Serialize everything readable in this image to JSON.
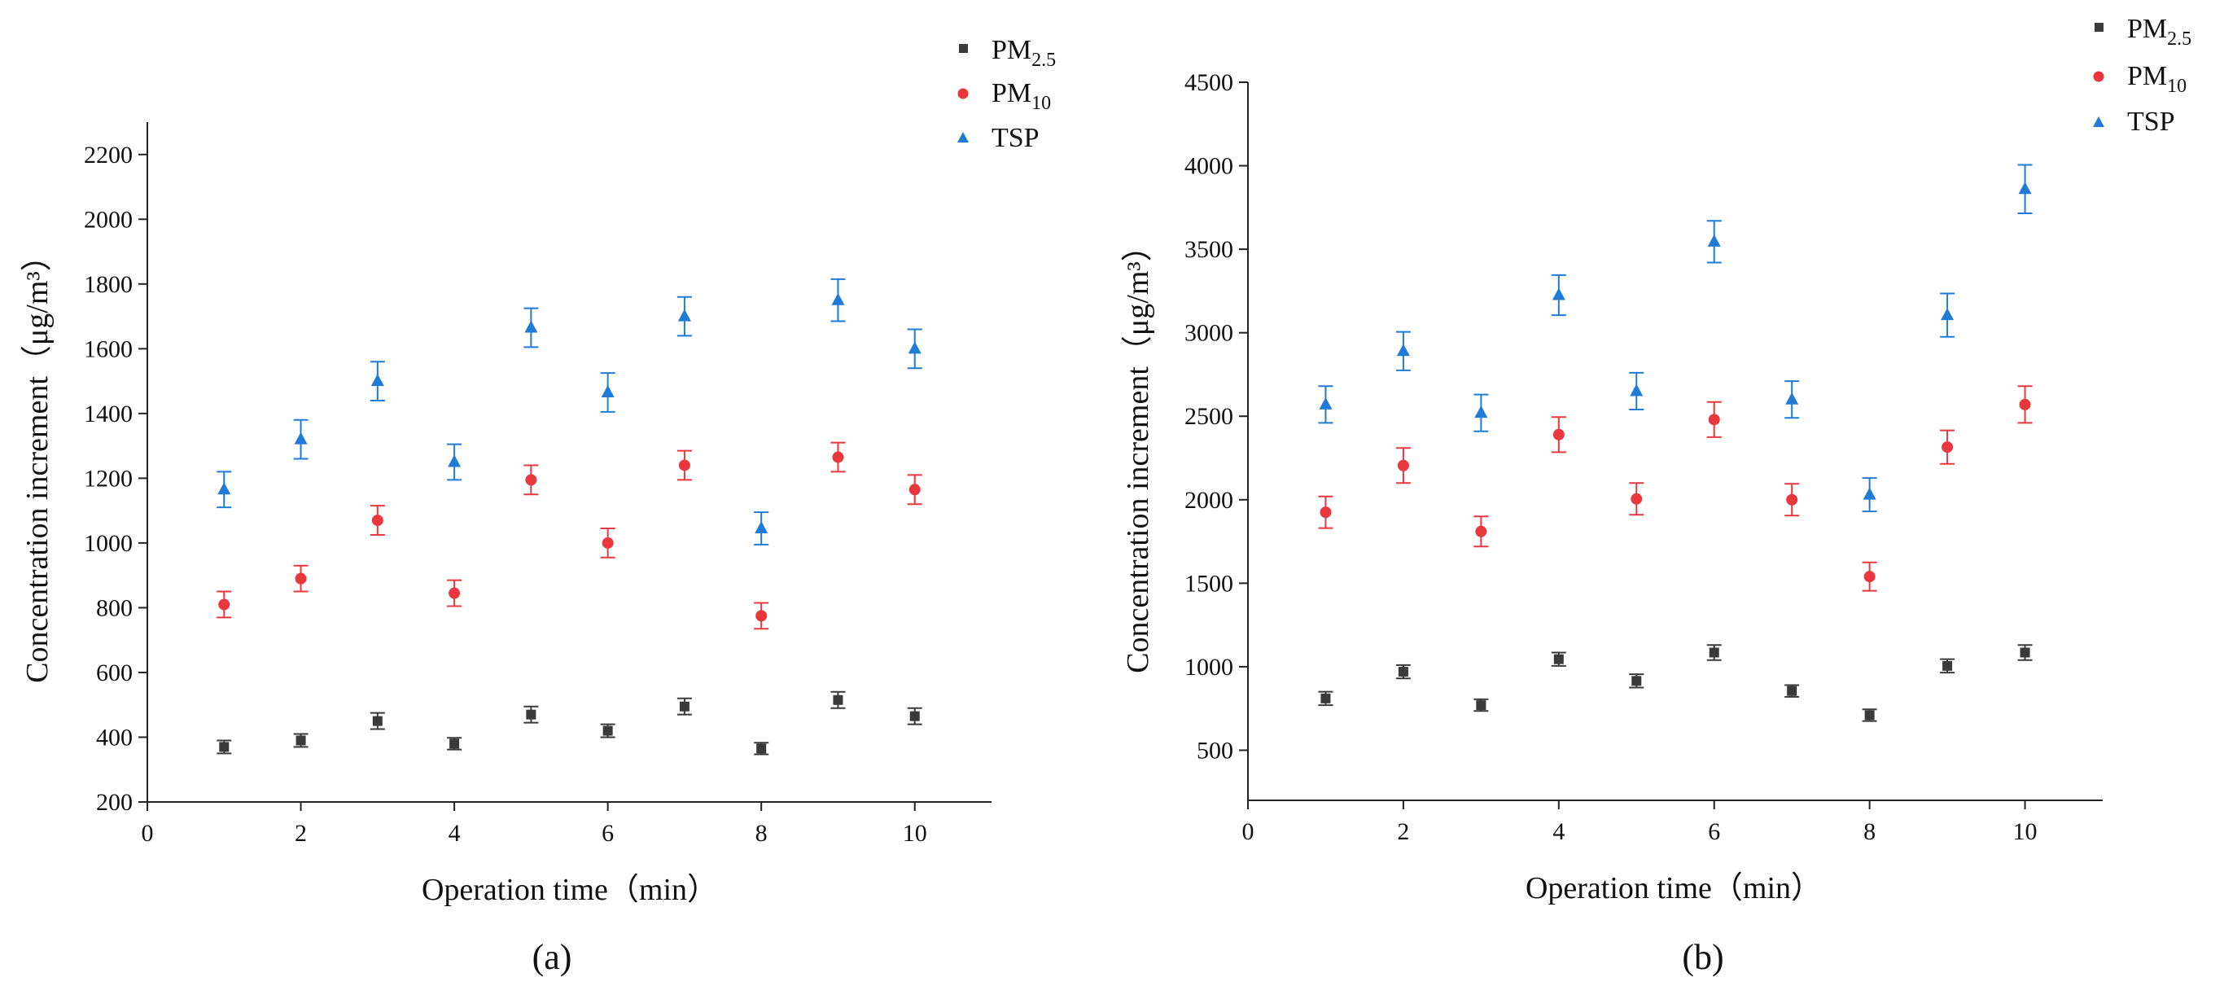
{
  "chart_data": [
    {
      "type": "scatter",
      "panel_label": "(a)",
      "xlabel": "Operation time（min）",
      "ylabel": "Concentration increment（μg/m³）",
      "xlim": [
        0,
        11
      ],
      "ylim": [
        200,
        2300
      ],
      "xticks": [
        0,
        2,
        4,
        6,
        8,
        10
      ],
      "yticks": [
        200,
        400,
        600,
        800,
        1000,
        1200,
        1400,
        1600,
        1800,
        2000,
        2200
      ],
      "grid": false,
      "legend_position": "top-right",
      "x": [
        1,
        2,
        3,
        4,
        5,
        6,
        7,
        8,
        9,
        10
      ],
      "series": [
        {
          "name": "PM2.5",
          "legend_main": "PM",
          "legend_sub": "2.5",
          "marker": "square",
          "color": "#3a3a3a",
          "values": [
            370,
            390,
            450,
            380,
            470,
            420,
            495,
            365,
            515,
            465
          ],
          "errors": [
            20,
            20,
            25,
            18,
            25,
            20,
            25,
            18,
            25,
            25
          ]
        },
        {
          "name": "PM10",
          "legend_main": "PM",
          "legend_sub": "10",
          "marker": "circle",
          "color": "#e8383d",
          "values": [
            810,
            890,
            1070,
            845,
            1195,
            1000,
            1240,
            775,
            1265,
            1165
          ],
          "errors": [
            40,
            40,
            45,
            40,
            45,
            45,
            45,
            40,
            45,
            45
          ]
        },
        {
          "name": "TSP",
          "legend_main": "TSP",
          "legend_sub": "",
          "marker": "triangle",
          "color": "#1f7bd6",
          "values": [
            1165,
            1320,
            1500,
            1250,
            1665,
            1465,
            1700,
            1045,
            1750,
            1600
          ],
          "errors": [
            55,
            60,
            60,
            55,
            60,
            60,
            60,
            50,
            65,
            60
          ]
        }
      ]
    },
    {
      "type": "scatter",
      "panel_label": "(b)",
      "xlabel": "Operation time（min）",
      "ylabel": "Concentration increment（μg/m³）",
      "xlim": [
        0,
        11
      ],
      "ylim": [
        200,
        4500
      ],
      "xticks": [
        0,
        2,
        4,
        6,
        8,
        10
      ],
      "yticks": [
        500,
        1000,
        1500,
        2000,
        2500,
        3000,
        3500,
        4000,
        4500
      ],
      "grid": false,
      "legend_position": "top-right",
      "x": [
        1,
        2,
        3,
        4,
        5,
        6,
        7,
        8,
        9,
        10
      ],
      "series": [
        {
          "name": "PM2.5",
          "legend_main": "PM",
          "legend_sub": "2.5",
          "marker": "square",
          "color": "#3a3a3a",
          "values": [
            810,
            970,
            770,
            1045,
            915,
            1085,
            855,
            710,
            1005,
            1085
          ],
          "errors": [
            40,
            40,
            35,
            40,
            40,
            45,
            35,
            35,
            40,
            45
          ]
        },
        {
          "name": "PM10",
          "legend_main": "PM",
          "legend_sub": "10",
          "marker": "circle",
          "color": "#e8383d",
          "values": [
            1925,
            2205,
            1810,
            2390,
            2005,
            2480,
            2000,
            1540,
            2315,
            2570
          ],
          "errors": [
            95,
            105,
            90,
            105,
            95,
            105,
            95,
            85,
            100,
            110
          ]
        },
        {
          "name": "TSP",
          "legend_main": "TSP",
          "legend_sub": "",
          "marker": "triangle",
          "color": "#1f7bd6",
          "values": [
            2570,
            2890,
            2520,
            3225,
            2650,
            3545,
            2600,
            2030,
            3105,
            3860
          ],
          "errors": [
            110,
            115,
            110,
            120,
            110,
            125,
            110,
            100,
            130,
            145
          ]
        }
      ]
    }
  ]
}
